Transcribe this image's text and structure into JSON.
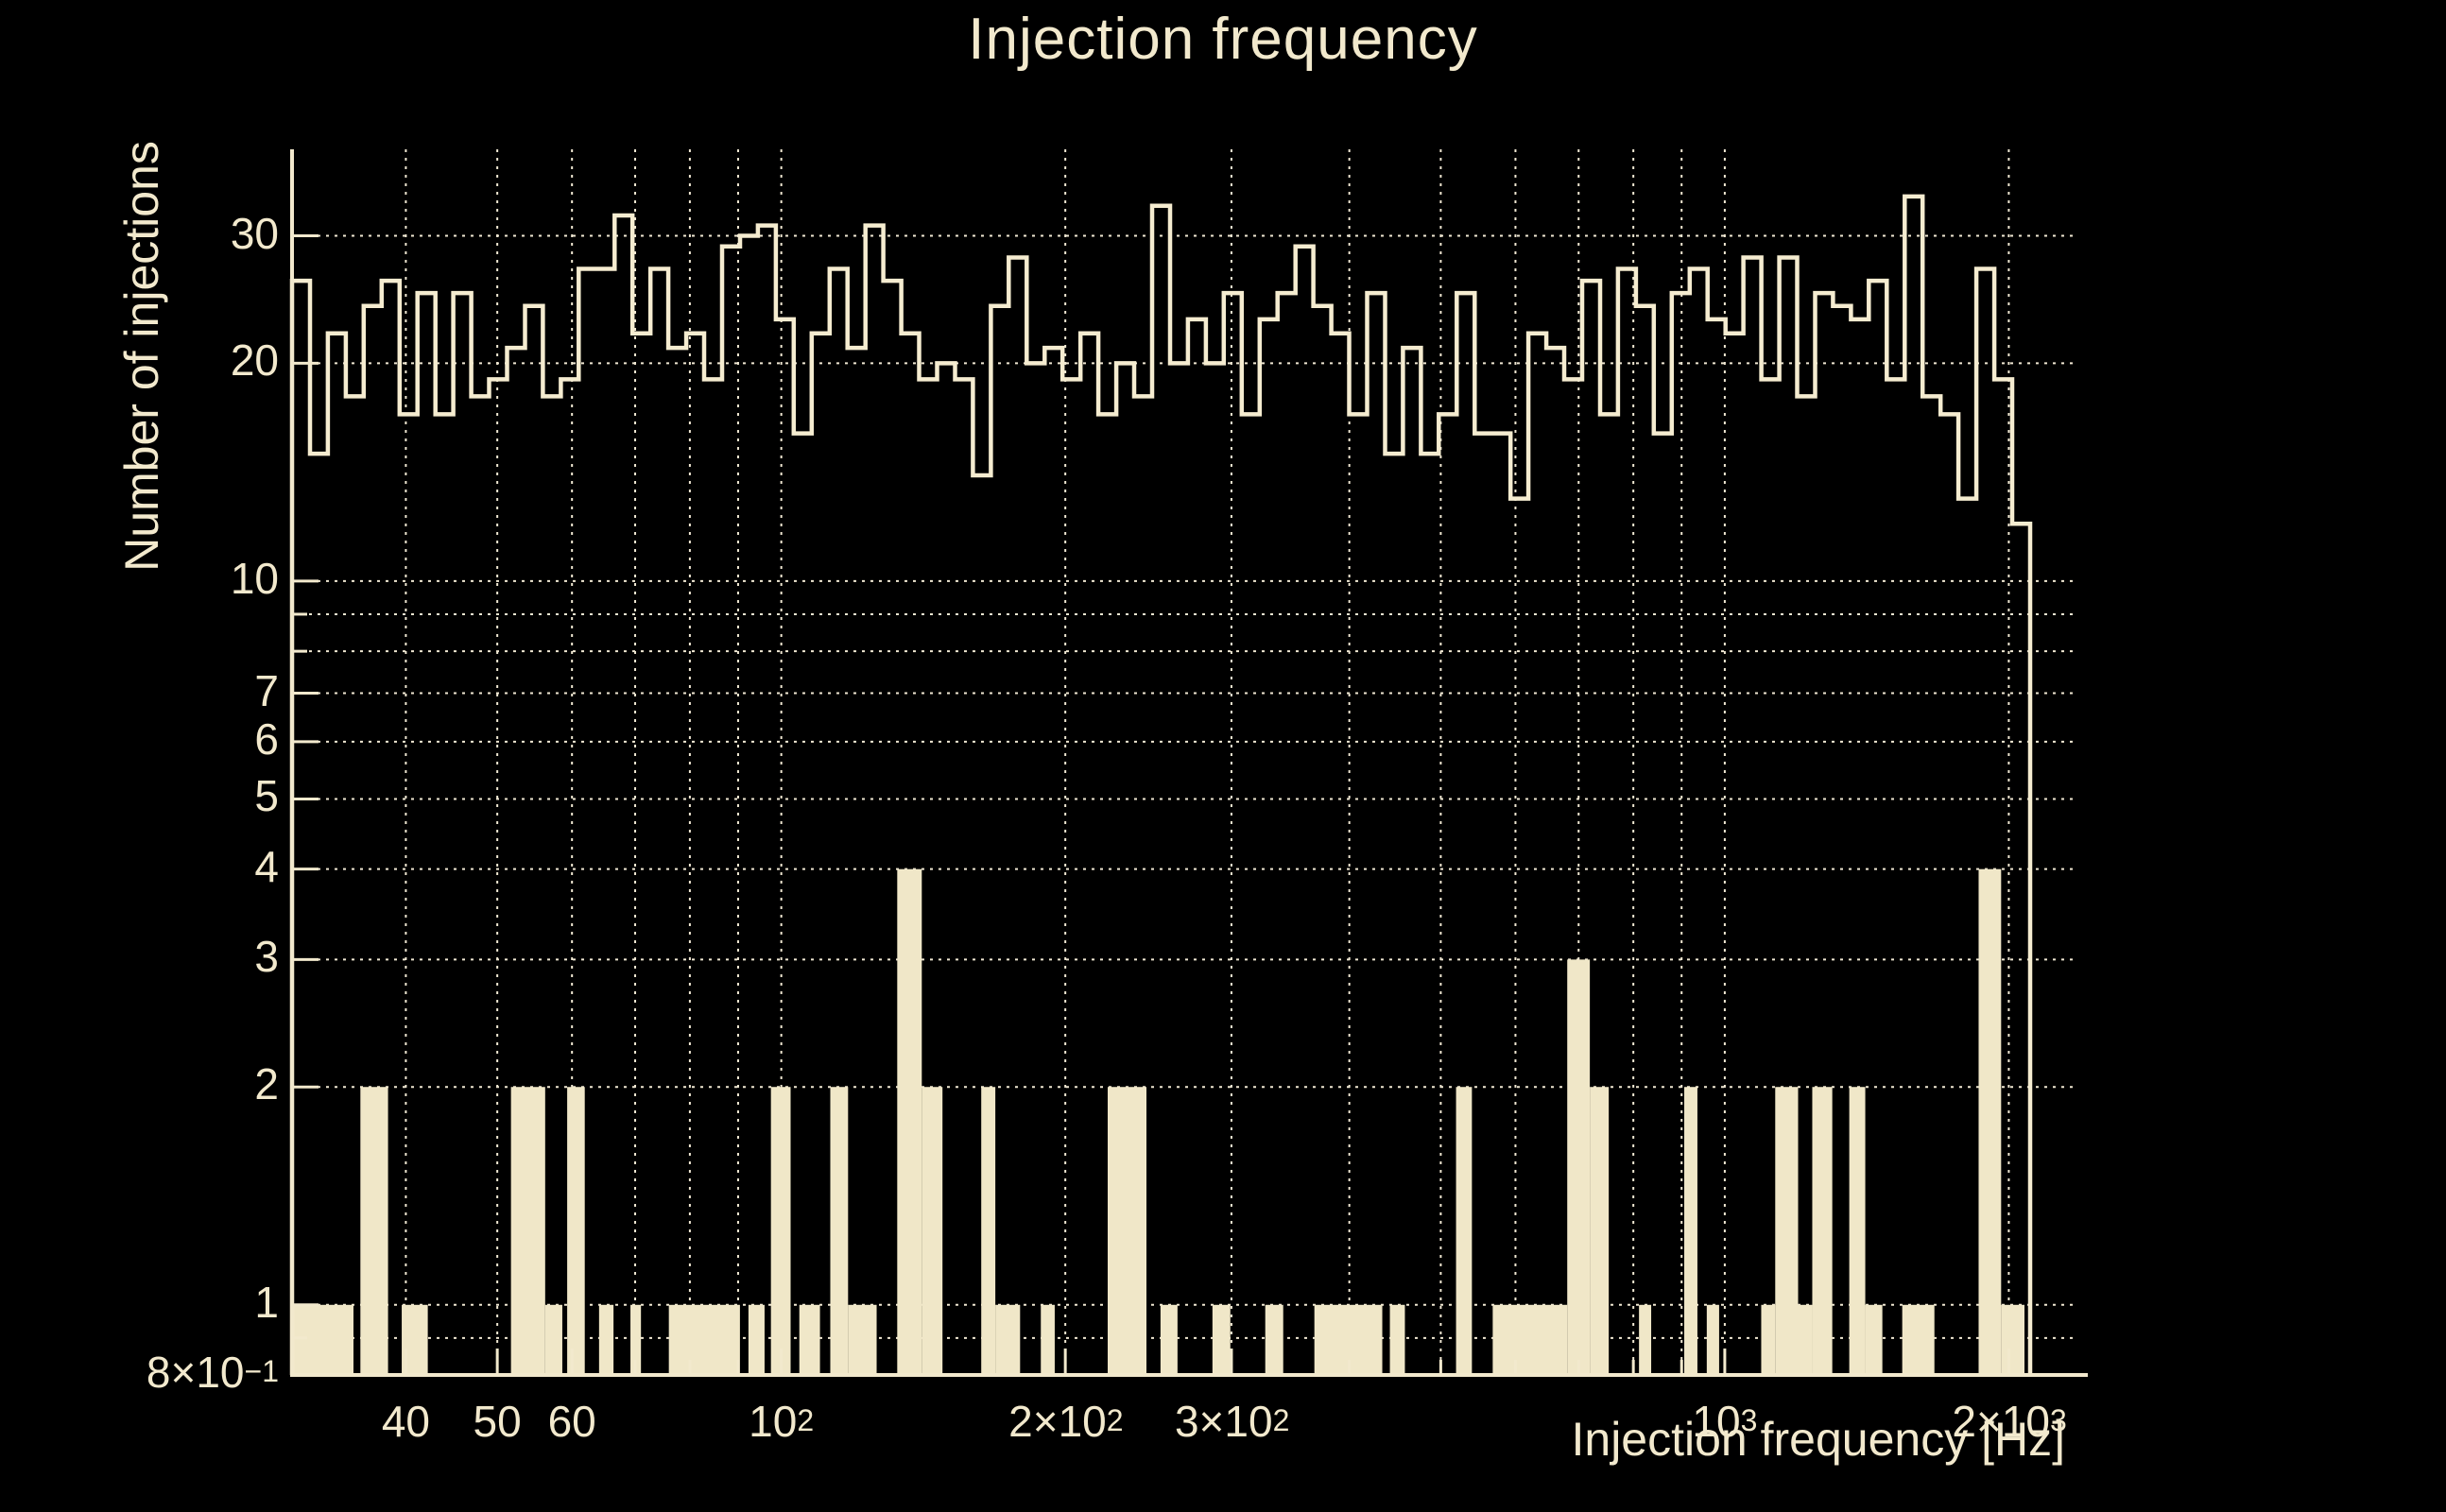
{
  "title": "Injection frequency",
  "colors": {
    "background": "#000000",
    "foreground": "#f2e9cd",
    "histogram_line": "#f5ecd0",
    "bar_fill": "#f0e7c8",
    "gridline": "#efe7d2"
  },
  "axes": {
    "x": {
      "label": "Injection frequency [Hz]",
      "scale": "log",
      "min_hz": 30.3,
      "max_hz": 2370,
      "tick_labels": [
        {
          "value": 40,
          "text": "40",
          "sup": ""
        },
        {
          "value": 50,
          "text": "50",
          "sup": ""
        },
        {
          "value": 60,
          "text": "60",
          "sup": ""
        },
        {
          "value": 100,
          "text": "10",
          "sup": "2"
        },
        {
          "value": 200,
          "text": "2×10",
          "sup": "2"
        },
        {
          "value": 300,
          "text": "3×10",
          "sup": "2"
        },
        {
          "value": 1000,
          "text": "10",
          "sup": "3"
        },
        {
          "value": 2000,
          "text": "2×10",
          "sup": "3"
        }
      ],
      "gridlines": [
        40,
        50,
        60,
        70,
        80,
        90,
        100,
        200,
        300,
        400,
        500,
        600,
        700,
        800,
        900,
        1000,
        2000
      ]
    },
    "y": {
      "label": "Number of injections",
      "scale": "log",
      "min": 0.8,
      "max": 39.5,
      "tick_labels": [
        {
          "value": 30,
          "text": "30",
          "sup": ""
        },
        {
          "value": 20,
          "text": "20",
          "sup": ""
        },
        {
          "value": 10,
          "text": "10",
          "sup": ""
        },
        {
          "value": 7,
          "text": "7",
          "sup": ""
        },
        {
          "value": 6,
          "text": "6",
          "sup": ""
        },
        {
          "value": 5,
          "text": "5",
          "sup": ""
        },
        {
          "value": 4,
          "text": "4",
          "sup": ""
        },
        {
          "value": 3,
          "text": "3",
          "sup": ""
        },
        {
          "value": 2,
          "text": "2",
          "sup": ""
        },
        {
          "value": 1,
          "text": "1",
          "sup": ""
        },
        {
          "value": 0.8,
          "text": "8×10",
          "sup": "−1"
        }
      ],
      "gridlines": [
        0.9,
        1,
        2,
        3,
        4,
        5,
        6,
        7,
        8,
        9,
        10,
        20,
        30
      ]
    }
  },
  "chart_data": {
    "type": "bar",
    "title": "Injection frequency",
    "xlabel": "Injection frequency [Hz]",
    "ylabel": "Number of injections",
    "x_scale": "log",
    "y_scale": "log",
    "xlim": [
      30.3,
      2370
    ],
    "ylim": [
      0.8,
      39.5
    ],
    "grid": true,
    "legend": false,
    "series": [
      {
        "name": "injection-count-outline-histogram",
        "style": "step-outline",
        "bin_start_hz": 30.3,
        "bin_ratio": 1.0447,
        "n_bins": 97,
        "counts": [
          26,
          15,
          22,
          18,
          24,
          26,
          17,
          25,
          17,
          25,
          18,
          19,
          21,
          24,
          18,
          19,
          27,
          27,
          32,
          22,
          27,
          21,
          22,
          19,
          29,
          30,
          31,
          23,
          16,
          22,
          27,
          21,
          31,
          26,
          22,
          19,
          20,
          19,
          14,
          24,
          28,
          20,
          21,
          19,
          22,
          17,
          20,
          18,
          33,
          20,
          23,
          20,
          25,
          17,
          23,
          25,
          29,
          24,
          22,
          17,
          25,
          15,
          21,
          15,
          17,
          25,
          16,
          16,
          13,
          22,
          21,
          19,
          26,
          17,
          27,
          24,
          16,
          25,
          27,
          23,
          22,
          28,
          19,
          28,
          18,
          25,
          24,
          23,
          26,
          19,
          34,
          18,
          17,
          13,
          27,
          19,
          12
        ]
      },
      {
        "name": "injection-count-filled-histogram",
        "style": "filled-bars",
        "bars_hz_lo_hi_count": [
          [
            30.2,
            35.2,
            1
          ],
          [
            35.8,
            38.3,
            2
          ],
          [
            39.6,
            42.2,
            1
          ],
          [
            51.7,
            56.2,
            2
          ],
          [
            56.2,
            58.6,
            1
          ],
          [
            59.3,
            61.9,
            2
          ],
          [
            64.1,
            66.4,
            1
          ],
          [
            69.2,
            71.0,
            1
          ],
          [
            76.0,
            90.4,
            1
          ],
          [
            92.3,
            96.0,
            1
          ],
          [
            97.5,
            102.3,
            2
          ],
          [
            104.5,
            109.9,
            1
          ],
          [
            112.7,
            117.7,
            2
          ],
          [
            117.7,
            126.2,
            1
          ],
          [
            132.7,
            140.9,
            4
          ],
          [
            140.9,
            148.2,
            2
          ],
          [
            162.9,
            168.6,
            2
          ],
          [
            168.6,
            179.1,
            1
          ],
          [
            188.4,
            194.9,
            1
          ],
          [
            221.8,
            243.8,
            2
          ],
          [
            252.3,
            263.0,
            1
          ],
          [
            286.4,
            299.2,
            1
          ],
          [
            325.8,
            340.4,
            1
          ],
          [
            367.3,
            433.5,
            1
          ],
          [
            441.6,
            458.1,
            1
          ],
          [
            519.0,
            539.5,
            2
          ],
          [
            567.6,
            680.8,
            1
          ],
          [
            680.8,
            719.4,
            3
          ],
          [
            719.4,
            753.4,
            2
          ],
          [
            811.1,
            835.6,
            1
          ],
          [
            905.8,
            935.4,
            2
          ],
          [
            957.0,
            986.3,
            1
          ],
          [
            1093,
            1131,
            1
          ],
          [
            1131,
            1196,
            2
          ],
          [
            1196,
            1238,
            1
          ],
          [
            1238,
            1300,
            2
          ],
          [
            1355,
            1409,
            2
          ],
          [
            1409,
            1469,
            1
          ],
          [
            1542,
            1668,
            1
          ],
          [
            1858,
            1963,
            4
          ],
          [
            1963,
            2078,
            1
          ]
        ]
      }
    ]
  }
}
